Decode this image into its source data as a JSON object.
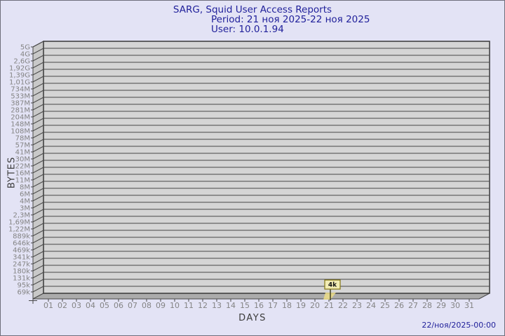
{
  "header": {
    "title": "SARG, Squid User Access Reports",
    "period": "Period: 21 ноя 2025-22 ноя 2025",
    "user": "User: 10.0.1.94"
  },
  "footer": {
    "datetime": "22/ноя/2025-00:00"
  },
  "colors": {
    "background": "#e3e3f5",
    "frame_border": "#6e6e7b",
    "title_text": "#21219b",
    "axis_title_text": "#3c3c3c",
    "tick_text": "#848484",
    "plot_front": "#d5d5d5",
    "plot_side": "#c8c8c8",
    "plot_floor": "#ababab",
    "grid_line": "#484848",
    "marker_fill": "#f2ecb4",
    "marker_border": "#857715",
    "marker_flag": "#ecdd87",
    "marker_text": "#111111"
  },
  "chart_data": {
    "type": "bar",
    "title": "SARG, Squid User Access Reports",
    "subtitle_period": "Period: 21 ноя 2025-22 ноя 2025",
    "subtitle_user": "User: 10.0.1.94",
    "xlabel": "DAYS",
    "ylabel": "BYTES",
    "grid": "horizontal",
    "legend": "none",
    "style": "3d",
    "categories": [
      "01",
      "02",
      "03",
      "04",
      "05",
      "06",
      "07",
      "08",
      "09",
      "10",
      "11",
      "12",
      "13",
      "14",
      "15",
      "16",
      "17",
      "18",
      "19",
      "20",
      "21",
      "22",
      "23",
      "24",
      "25",
      "26",
      "27",
      "28",
      "29",
      "30",
      "31"
    ],
    "y_tick_labels": [
      "5G",
      "4G",
      "2,6G",
      "1,92G",
      "1,39G",
      "1,01G",
      "734M",
      "533M",
      "387M",
      "281M",
      "204M",
      "148M",
      "108M",
      "78M",
      "57M",
      "41M",
      "30M",
      "22M",
      "16M",
      "11M",
      "8M",
      "6M",
      "4M",
      "3M",
      "2,3M",
      "1,69M",
      "1,22M",
      "889k",
      "646k",
      "469k",
      "341k",
      "247k",
      "180k",
      "131k",
      "95k",
      "69k"
    ],
    "series": [
      {
        "name": "bytes per day",
        "unit": "bytes",
        "values": [
          0,
          0,
          0,
          0,
          0,
          0,
          0,
          0,
          0,
          0,
          0,
          0,
          0,
          0,
          0,
          0,
          0,
          0,
          0,
          0,
          4096,
          0,
          0,
          0,
          0,
          0,
          0,
          0,
          0,
          0,
          0
        ]
      }
    ],
    "marker": {
      "day": 21,
      "label": "4k"
    },
    "annotations": [
      {
        "category": "21",
        "label": "4k"
      }
    ]
  }
}
